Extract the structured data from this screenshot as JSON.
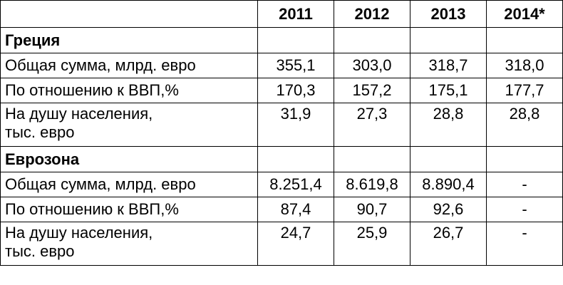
{
  "header": {
    "corner": "",
    "years": [
      "2011",
      "2012",
      "2013",
      "2014*"
    ]
  },
  "sections": [
    {
      "title": "Греция",
      "rows": [
        {
          "label": "Общая сумма, млрд. евро",
          "values": [
            "355,1",
            "303,0",
            "318,7",
            "318,0"
          ]
        },
        {
          "label": "По отношению к ВВП,%",
          "values": [
            "170,3",
            "157,2",
            "175,1",
            "177,7"
          ]
        },
        {
          "label_line1": "На душу населения,",
          "label_line2": "тыс. евро",
          "values": [
            "31,9",
            "27,3",
            "28,8",
            "28,8"
          ]
        }
      ]
    },
    {
      "title": "Еврозона",
      "rows": [
        {
          "label": "Общая сумма, млрд. евро",
          "values": [
            "8.251,4",
            "8.619,8",
            "8.890,4",
            "-"
          ]
        },
        {
          "label": "По отношению к ВВП,%",
          "values": [
            "87,4",
            "90,7",
            "92,6",
            "-"
          ]
        },
        {
          "label_line1": "На душу населения,",
          "label_line2": "тыс. евро",
          "values": [
            "24,7",
            "25,9",
            "26,7",
            "-"
          ]
        }
      ]
    }
  ]
}
